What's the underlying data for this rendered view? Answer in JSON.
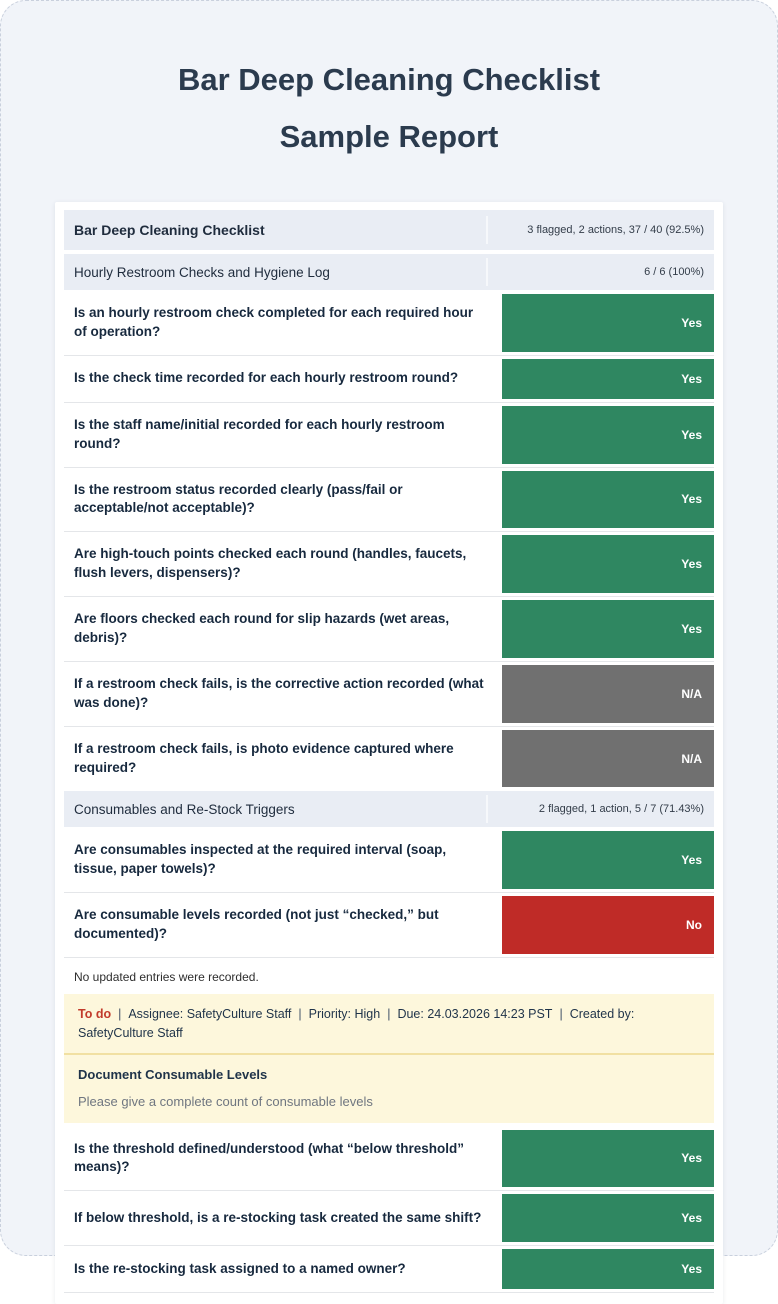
{
  "title": {
    "line1": "Bar Deep Cleaning Checklist",
    "line2": "Sample Report"
  },
  "colors": {
    "yes": "#2f8761",
    "no": "#bf2b27",
    "na": "#707070",
    "todo": "#c23b2b"
  },
  "report": {
    "rows": [
      {
        "type": "header",
        "label": "Bar Deep Cleaning Checklist",
        "stats": "3 flagged, 2 actions, 37 / 40 (92.5%)"
      },
      {
        "type": "section",
        "label": "Hourly Restroom Checks and Hygiene Log",
        "stats": "6 / 6 (100%)"
      },
      {
        "type": "question",
        "text": "Is an hourly restroom check completed for each required hour of operation?",
        "answer": "Yes",
        "answer_type": "yes",
        "lines": 2
      },
      {
        "type": "question",
        "text": "Is the check time recorded for each hourly restroom round?",
        "answer": "Yes",
        "answer_type": "yes",
        "lines": 1
      },
      {
        "type": "question",
        "text": "Is the staff name/initial recorded for each hourly restroom round?",
        "answer": "Yes",
        "answer_type": "yes",
        "lines": 2
      },
      {
        "type": "question",
        "text": "Is the restroom status recorded clearly (pass/fail or acceptable/not acceptable)?",
        "answer": "Yes",
        "answer_type": "yes",
        "lines": 2
      },
      {
        "type": "question",
        "text": "Are high-touch points checked each round (handles, faucets, flush levers, dispensers)?",
        "answer": "Yes",
        "answer_type": "yes",
        "lines": 2
      },
      {
        "type": "question",
        "text": "Are floors checked each round for slip hazards (wet areas, debris)?",
        "answer": "Yes",
        "answer_type": "yes",
        "lines": 2
      },
      {
        "type": "question",
        "text": "If a restroom check fails, is the corrective action recorded (what was done)?",
        "answer": "N/A",
        "answer_type": "na",
        "lines": 2
      },
      {
        "type": "question",
        "text": "If a restroom check fails, is photo evidence captured where required?",
        "answer": "N/A",
        "answer_type": "na",
        "lines": 2
      },
      {
        "type": "section",
        "label": "Consumables and Re-Stock Triggers",
        "stats": "2 flagged, 1 action, 5 / 7 (71.43%)"
      },
      {
        "type": "question",
        "text": "Are consumables inspected at the required interval (soap, tissue, paper towels)?",
        "answer": "Yes",
        "answer_type": "yes",
        "lines": 2
      },
      {
        "type": "question",
        "text": "Are consumable levels recorded (not just “checked,” but documented)?",
        "answer": "No",
        "answer_type": "no",
        "lines": 2
      },
      {
        "type": "note",
        "text": "No updated entries were recorded."
      },
      {
        "type": "action",
        "status": "To do",
        "meta": [
          "Assignee: SafetyCulture Staff",
          "Priority: High",
          "Due: 24.03.2026 14:23 PST",
          "Created by: SafetyCulture Staff"
        ],
        "title": "Document Consumable Levels",
        "description": "Please give a complete count of consumable levels"
      },
      {
        "type": "question",
        "text": "Is the threshold defined/understood (what “below threshold” means)?",
        "answer": "Yes",
        "answer_type": "yes",
        "lines": 2
      },
      {
        "type": "question",
        "text": "If below threshold, is a re-stocking task created the same shift?",
        "answer": "Yes",
        "answer_type": "yes",
        "lines": 2
      },
      {
        "type": "question",
        "text": "Is the re-stocking task assigned to a named owner?",
        "answer": "Yes",
        "answer_type": "yes",
        "lines": 1
      }
    ]
  }
}
